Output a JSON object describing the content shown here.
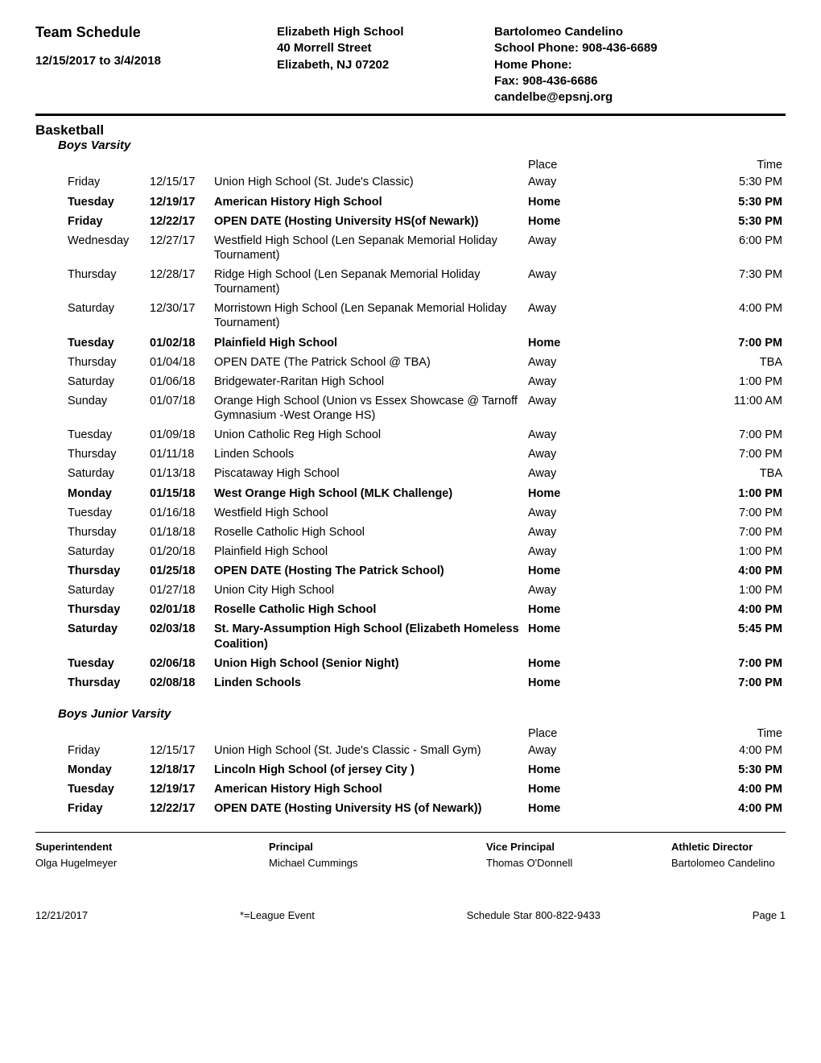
{
  "header": {
    "title": "Team Schedule",
    "date_range": "12/15/2017 to 3/4/2018",
    "school_name": "Elizabeth High School",
    "address_line1": "40 Morrell Street",
    "address_line2": "Elizabeth, NJ 07202",
    "contact_name": "Bartolomeo Candelino",
    "school_phone": "School Phone: 908-436-6689",
    "home_phone": "Home Phone:",
    "fax": "Fax: 908-436-6686",
    "email": "candelbe@epsnj.org"
  },
  "sport": "Basketball",
  "varsity": {
    "label": "Boys Varsity",
    "col_place": "Place",
    "col_time": "Time",
    "rows": [
      {
        "day": "Friday",
        "date": "12/15/17",
        "opponent": "Union High School (St. Jude's Classic)",
        "place": "Away",
        "time": "5:30 PM",
        "bold": false
      },
      {
        "day": "Tuesday",
        "date": "12/19/17",
        "opponent": "American History High School",
        "place": "Home",
        "time": "5:30 PM",
        "bold": true
      },
      {
        "day": "Friday",
        "date": "12/22/17",
        "opponent": "OPEN DATE (Hosting University HS(of Newark))",
        "place": "Home",
        "time": "5:30 PM",
        "bold": true
      },
      {
        "day": "Wednesday",
        "date": "12/27/17",
        "opponent": "Westfield High School (Len Sepanak Memorial Holiday Tournament)",
        "place": "Away",
        "time": "6:00 PM",
        "bold": false
      },
      {
        "day": "Thursday",
        "date": "12/28/17",
        "opponent": "Ridge High School (Len Sepanak Memorial Holiday Tournament)",
        "place": "Away",
        "time": "7:30 PM",
        "bold": false
      },
      {
        "day": "Saturday",
        "date": "12/30/17",
        "opponent": "Morristown High School (Len Sepanak Memorial Holiday Tournament)",
        "place": "Away",
        "time": "4:00 PM",
        "bold": false
      },
      {
        "day": "Tuesday",
        "date": "01/02/18",
        "opponent": "Plainfield High School",
        "place": "Home",
        "time": "7:00 PM",
        "bold": true
      },
      {
        "day": "Thursday",
        "date": "01/04/18",
        "opponent": "OPEN DATE (The Patrick School @ TBA)",
        "place": "Away",
        "time": "TBA",
        "bold": false
      },
      {
        "day": "Saturday",
        "date": "01/06/18",
        "opponent": "Bridgewater-Raritan High School",
        "place": "Away",
        "time": "1:00 PM",
        "bold": false
      },
      {
        "day": "Sunday",
        "date": "01/07/18",
        "opponent": "Orange High School (Union vs Essex Showcase @ Tarnoff Gymnasium -West Orange HS)",
        "place": "Away",
        "time": "11:00 AM",
        "bold": false
      },
      {
        "day": "Tuesday",
        "date": "01/09/18",
        "opponent": "Union Catholic Reg High School",
        "place": "Away",
        "time": "7:00 PM",
        "bold": false
      },
      {
        "day": "Thursday",
        "date": "01/11/18",
        "opponent": "Linden Schools",
        "place": "Away",
        "time": "7:00 PM",
        "bold": false
      },
      {
        "day": "Saturday",
        "date": "01/13/18",
        "opponent": "Piscataway High School",
        "place": "Away",
        "time": "TBA",
        "bold": false
      },
      {
        "day": "Monday",
        "date": "01/15/18",
        "opponent": "West Orange High School (MLK Challenge)",
        "place": "Home",
        "time": "1:00 PM",
        "bold": true
      },
      {
        "day": "Tuesday",
        "date": "01/16/18",
        "opponent": "Westfield High School",
        "place": "Away",
        "time": "7:00 PM",
        "bold": false
      },
      {
        "day": "Thursday",
        "date": "01/18/18",
        "opponent": "Roselle Catholic High School",
        "place": "Away",
        "time": "7:00 PM",
        "bold": false
      },
      {
        "day": "Saturday",
        "date": "01/20/18",
        "opponent": "Plainfield High School",
        "place": "Away",
        "time": "1:00 PM",
        "bold": false
      },
      {
        "day": "Thursday",
        "date": "01/25/18",
        "opponent": "OPEN DATE (Hosting The Patrick School)",
        "place": "Home",
        "time": "4:00 PM",
        "bold": true
      },
      {
        "day": "Saturday",
        "date": "01/27/18",
        "opponent": "Union City High School",
        "place": "Away",
        "time": "1:00 PM",
        "bold": false
      },
      {
        "day": "Thursday",
        "date": "02/01/18",
        "opponent": "Roselle Catholic High School",
        "place": "Home",
        "time": "4:00 PM",
        "bold": true
      },
      {
        "day": "Saturday",
        "date": "02/03/18",
        "opponent": "St. Mary-Assumption High School (Elizabeth Homeless Coalition)",
        "place": "Home",
        "time": "5:45 PM",
        "bold": true
      },
      {
        "day": "Tuesday",
        "date": "02/06/18",
        "opponent": "Union High School (Senior Night)",
        "place": "Home",
        "time": "7:00 PM",
        "bold": true
      },
      {
        "day": "Thursday",
        "date": "02/08/18",
        "opponent": "Linden Schools",
        "place": "Home",
        "time": "7:00 PM",
        "bold": true
      }
    ]
  },
  "jv": {
    "label": "Boys Junior Varsity",
    "col_place": "Place",
    "col_time": "Time",
    "rows": [
      {
        "day": "Friday",
        "date": "12/15/17",
        "opponent": "Union High School (St. Jude's Classic - Small Gym)",
        "place": "Away",
        "time": "4:00 PM",
        "bold": false
      },
      {
        "day": "Monday",
        "date": "12/18/17",
        "opponent": "Lincoln High School (of jersey City   )",
        "place": "Home",
        "time": "5:30 PM",
        "bold": true
      },
      {
        "day": "Tuesday",
        "date": "12/19/17",
        "opponent": "American History High School",
        "place": "Home",
        "time": "4:00 PM",
        "bold": true
      },
      {
        "day": "Friday",
        "date": "12/22/17",
        "opponent": "OPEN DATE (Hosting University HS (of Newark))",
        "place": "Home",
        "time": "4:00 PM",
        "bold": true
      }
    ]
  },
  "officials": {
    "superintendent_title": "Superintendent",
    "superintendent_name": "Olga Hugelmeyer",
    "principal_title": "Principal",
    "principal_name": "Michael Cummings",
    "vice_principal_title": "Vice Principal",
    "vice_principal_name": "Thomas O'Donnell",
    "athletic_director_title": "Athletic Director",
    "athletic_director_name": "Bartolomeo Candelino"
  },
  "footer": {
    "date": "12/21/2017",
    "legend": "*=League Event",
    "vendor": "Schedule Star 800-822-9433",
    "page": "Page 1"
  }
}
